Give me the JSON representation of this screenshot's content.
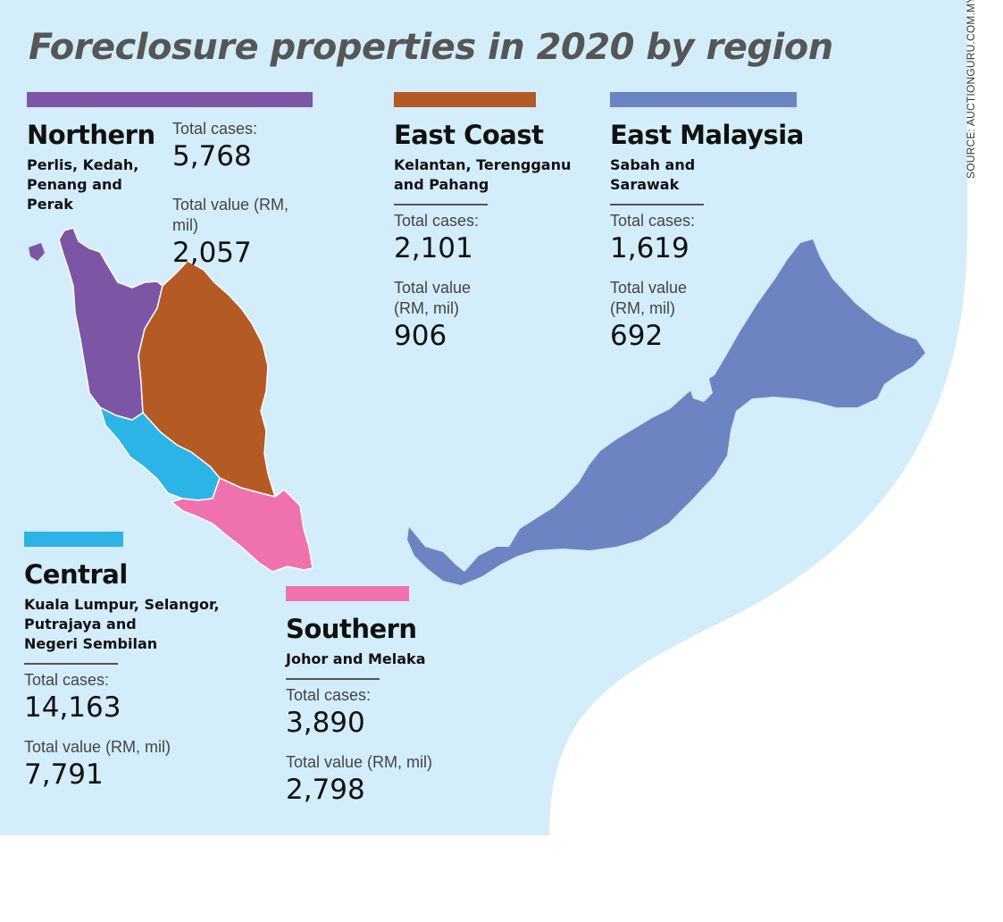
{
  "title": "Foreclosure properties in 2020 by region",
  "source": "SOURCE: AUCTIONGURU.COM.MY",
  "colors": {
    "background": "#d3edfa",
    "northern": "#7c56a5",
    "east_coast": "#b45a25",
    "east_malaysia": "#6e84c2",
    "central": "#2db4e6",
    "southern": "#ef72ae"
  },
  "regions": {
    "northern": {
      "name": "Northern",
      "states": "Perlis, Kedah,\nPenang and\nPerak",
      "cases_label": "Total cases:",
      "cases": "5,768",
      "value_label": "Total value (RM, mil)",
      "value": "2,057"
    },
    "east_coast": {
      "name": "East Coast",
      "states": "Kelantan, Terengganu\nand Pahang",
      "cases_label": "Total cases:",
      "cases": "2,101",
      "value_label": "Total value\n(RM, mil)",
      "value": "906"
    },
    "east_malaysia": {
      "name": "East Malaysia",
      "states": "Sabah and\nSarawak",
      "cases_label": "Total cases:",
      "cases": "1,619",
      "value_label": "Total value\n(RM, mil)",
      "value": "692"
    },
    "central": {
      "name": "Central",
      "states": "Kuala Lumpur, Selangor,\nPutrajaya and\nNegeri Sembilan",
      "cases_label": "Total cases:",
      "cases": "14,163",
      "value_label": "Total value (RM, mil)",
      "value": "7,791"
    },
    "southern": {
      "name": "Southern",
      "states": "Johor and Melaka",
      "cases_label": "Total cases:",
      "cases": "3,890",
      "value_label": "Total value (RM, mil)",
      "value": "2,798"
    }
  }
}
